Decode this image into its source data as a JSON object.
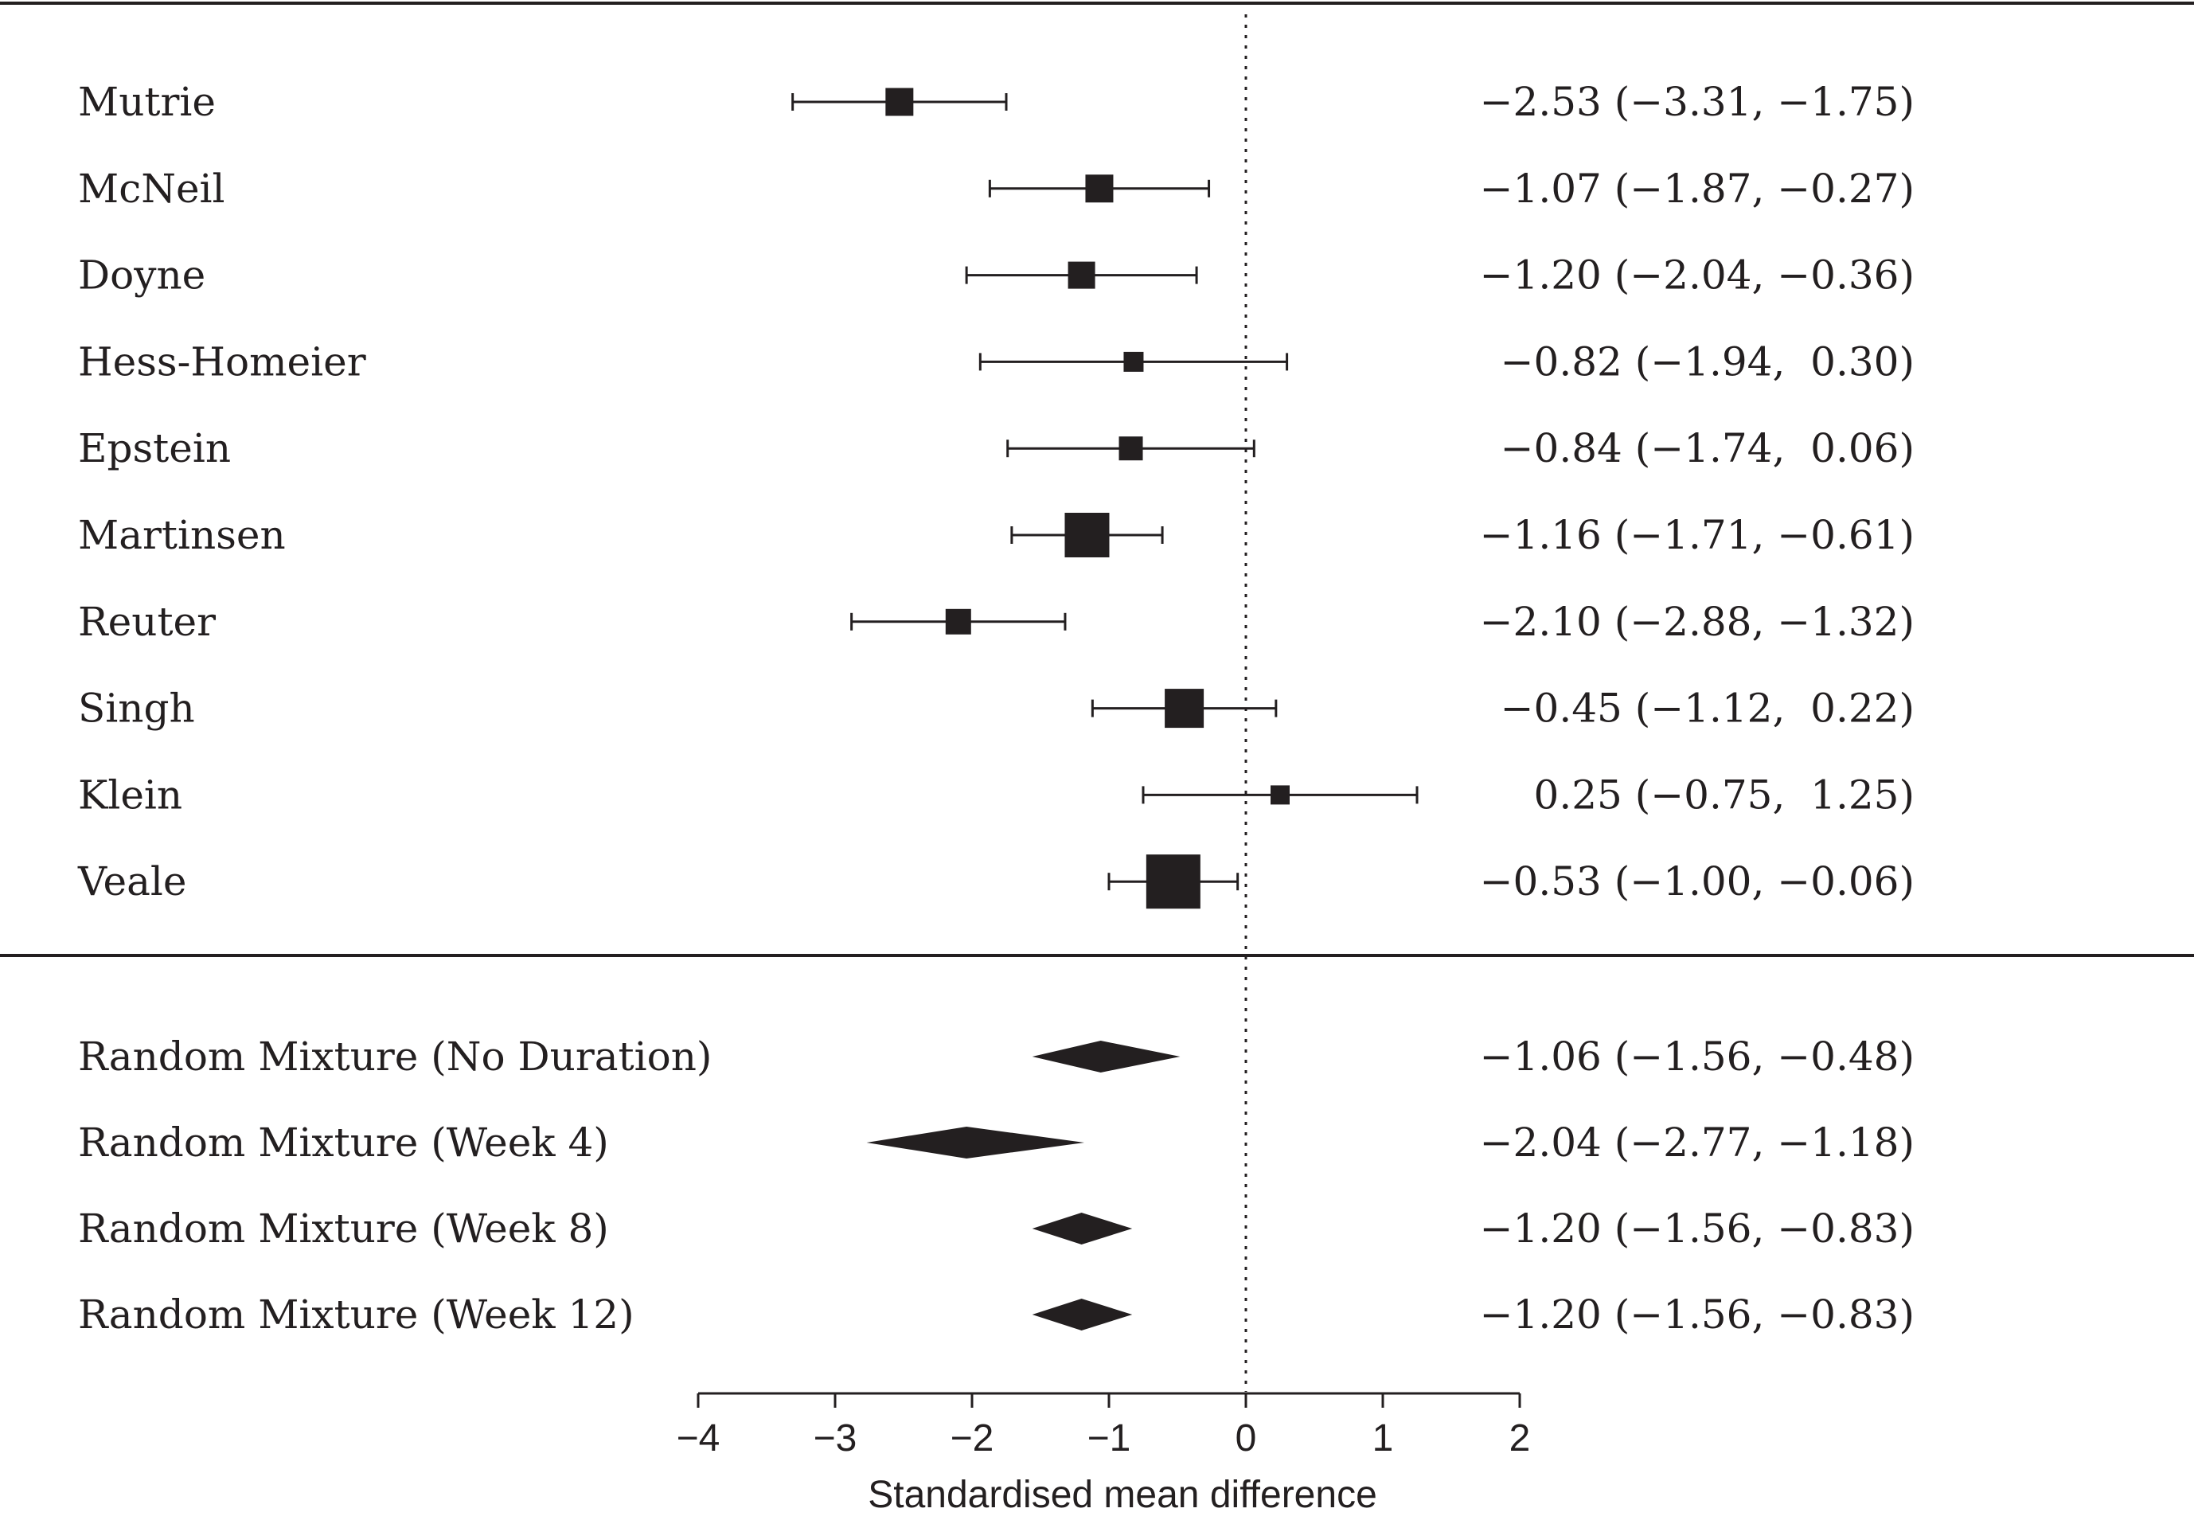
{
  "chart_data": {
    "type": "forest",
    "xlabel": "Standardised mean difference",
    "xlim": [
      -4,
      2
    ],
    "x_ticks": [
      -4,
      -3,
      -2,
      -1,
      0,
      1,
      2
    ],
    "x_tick_labels": [
      "−4",
      "−3",
      "−2",
      "−1",
      "0",
      "1",
      "2"
    ],
    "reference_line": 0,
    "studies": [
      {
        "name": "Mutrie",
        "estimate": -2.53,
        "lower": -3.31,
        "upper": -1.75,
        "ci_text": "−2.53 (−3.31, −1.75)",
        "weight": 0.35
      },
      {
        "name": "McNeil",
        "estimate": -1.07,
        "lower": -1.87,
        "upper": -0.27,
        "ci_text": "−1.07 (−1.87, −0.27)",
        "weight": 0.35
      },
      {
        "name": "Doyne",
        "estimate": -1.2,
        "lower": -2.04,
        "upper": -0.36,
        "ci_text": "−1.20 (−2.04, −0.36)",
        "weight": 0.34
      },
      {
        "name": "Hess-Homeier",
        "estimate": -0.82,
        "lower": -1.94,
        "upper": 0.3,
        "ci_text": "−0.82 (−1.94,  0.30)",
        "weight": 0.25
      },
      {
        "name": "Epstein",
        "estimate": -0.84,
        "lower": -1.74,
        "upper": 0.06,
        "ci_text": "−0.84 (−1.74,  0.06)",
        "weight": 0.3
      },
      {
        "name": "Martinsen",
        "estimate": -1.16,
        "lower": -1.71,
        "upper": -0.61,
        "ci_text": "−1.16 (−1.71, −0.61)",
        "weight": 0.56
      },
      {
        "name": "Reuter",
        "estimate": -2.1,
        "lower": -2.88,
        "upper": -1.32,
        "ci_text": "−2.10 (−2.88, −1.32)",
        "weight": 0.32
      },
      {
        "name": "Singh",
        "estimate": -0.45,
        "lower": -1.12,
        "upper": 0.22,
        "ci_text": "−0.45 (−1.12,  0.22)",
        "weight": 0.49
      },
      {
        "name": "Klein",
        "estimate": 0.25,
        "lower": -0.75,
        "upper": 1.25,
        "ci_text": "0.25 (−0.75,  1.25)",
        "weight": 0.24
      },
      {
        "name": "Veale",
        "estimate": -0.53,
        "lower": -1.0,
        "upper": -0.06,
        "ci_text": "−0.53 (−1.00, −0.06)",
        "weight": 0.68
      }
    ],
    "summaries": [
      {
        "name": "Random Mixture (No Duration)",
        "estimate": -1.06,
        "lower": -1.56,
        "upper": -0.48,
        "ci_text": "−1.06 (−1.56, −0.48)"
      },
      {
        "name": "Random Mixture (Week 4)",
        "estimate": -2.04,
        "lower": -2.77,
        "upper": -1.18,
        "ci_text": "−2.04 (−2.77, −1.18)"
      },
      {
        "name": "Random Mixture (Week 8)",
        "estimate": -1.2,
        "lower": -1.56,
        "upper": -0.83,
        "ci_text": "−1.20 (−1.56, −0.83)"
      },
      {
        "name": "Random Mixture (Week 12)",
        "estimate": -1.2,
        "lower": -1.56,
        "upper": -0.83,
        "ci_text": "−1.20 (−1.56, −0.83)"
      }
    ],
    "colors": {
      "ink": "#231f20",
      "background": "#ffffff"
    }
  }
}
